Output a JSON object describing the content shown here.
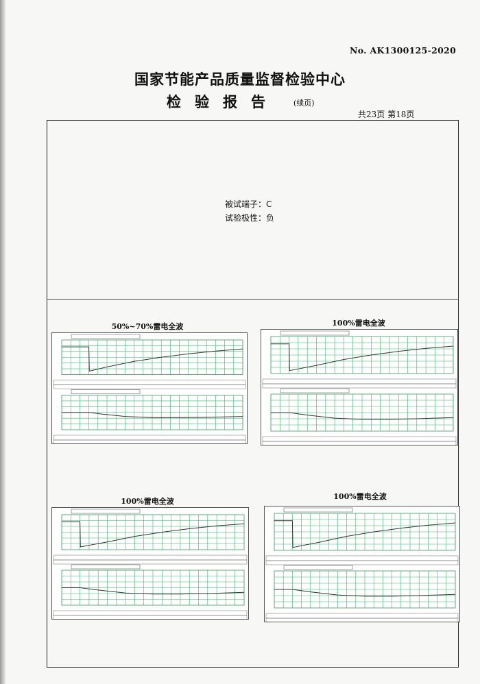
{
  "header": {
    "report_no": "No. AK1300125-2020",
    "title": "国家节能产品质量监督检验中心",
    "subtitle": "检验报告",
    "subtitle_note": "(续页)",
    "page_count": "共23页 第18页"
  },
  "test_info": {
    "terminal": "被试端子：C",
    "polarity": "试验极性：负"
  },
  "colors": {
    "grid": "#33b56a",
    "trace": "#333333",
    "stamp": "#cc3333"
  },
  "chart_data": [
    {
      "type": "line",
      "title": "50%~70%雷电全波",
      "x_unit": "us",
      "xlim": [
        0,
        200
      ],
      "voltage": {
        "x": [
          0,
          30,
          30.5,
          50,
          80,
          110,
          140,
          170,
          200
        ],
        "y": [
          0,
          0,
          -70,
          -58,
          -42,
          -30,
          -20,
          -12,
          -6
        ],
        "ylim": [
          -80,
          20
        ]
      },
      "current": {
        "x": [
          0,
          30,
          45,
          70,
          100,
          130,
          160,
          200
        ],
        "y": [
          0,
          0,
          -0.03,
          -0.07,
          -0.09,
          -0.09,
          -0.085,
          -0.07
        ],
        "ylim": [
          -0.3,
          0.3
        ]
      }
    },
    {
      "type": "line",
      "title": "100%雷电全波",
      "x_unit": "us",
      "xlim": [
        0,
        200
      ],
      "voltage": {
        "x": [
          0,
          20,
          20.5,
          50,
          80,
          110,
          140,
          170,
          200
        ],
        "y": [
          0,
          0,
          -72,
          -58,
          -42,
          -30,
          -20,
          -12,
          -6
        ],
        "ylim": [
          -80,
          20
        ]
      },
      "current": {
        "x": [
          0,
          20,
          40,
          70,
          100,
          130,
          160,
          200
        ],
        "y": [
          0,
          0,
          -0.04,
          -0.09,
          -0.11,
          -0.11,
          -0.1,
          -0.08
        ],
        "ylim": [
          -0.3,
          0.3
        ]
      }
    },
    {
      "type": "line",
      "title": "100%雷电全波",
      "x_unit": "us",
      "xlim": [
        0,
        200
      ],
      "voltage": {
        "x": [
          0,
          20,
          20.5,
          50,
          80,
          110,
          140,
          170,
          200
        ],
        "y": [
          0,
          0,
          -72,
          -58,
          -42,
          -30,
          -20,
          -12,
          -6
        ],
        "ylim": [
          -80,
          20
        ]
      },
      "current": {
        "x": [
          0,
          20,
          40,
          70,
          100,
          130,
          160,
          200
        ],
        "y": [
          0,
          0,
          -0.04,
          -0.09,
          -0.11,
          -0.11,
          -0.1,
          -0.08
        ],
        "ylim": [
          -0.3,
          0.3
        ]
      }
    },
    {
      "type": "line",
      "title": "100%雷电全波",
      "x_unit": "us",
      "xlim": [
        0,
        200
      ],
      "voltage": {
        "x": [
          0,
          20,
          20.5,
          50,
          80,
          110,
          140,
          170,
          200
        ],
        "y": [
          0,
          0,
          -72,
          -58,
          -42,
          -30,
          -20,
          -12,
          -6
        ],
        "ylim": [
          -80,
          20
        ]
      },
      "current": {
        "x": [
          0,
          20,
          40,
          70,
          100,
          130,
          160,
          200
        ],
        "y": [
          0,
          0,
          -0.04,
          -0.09,
          -0.11,
          -0.11,
          -0.1,
          -0.08
        ],
        "ylim": [
          -0.3,
          0.3
        ]
      }
    }
  ]
}
